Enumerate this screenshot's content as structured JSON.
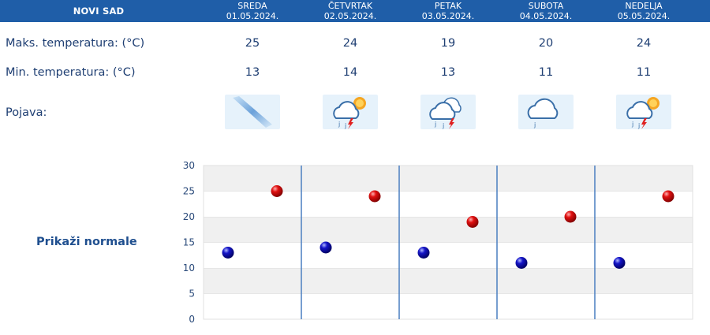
{
  "header": {
    "city": "NOVI SAD",
    "days": [
      {
        "name": "SREDA",
        "date": "01.05.2024."
      },
      {
        "name": "ČETVRTAK",
        "date": "02.05.2024."
      },
      {
        "name": "PETAK",
        "date": "03.05.2024."
      },
      {
        "name": "SUBOTA",
        "date": "04.05.2024."
      },
      {
        "name": "NEDELJA",
        "date": "05.05.2024."
      }
    ]
  },
  "rows": {
    "max_label": "Maks. temperatura: (°C)",
    "min_label": "Min. temperatura: (°C)",
    "phenomenon_label": "Pojava:"
  },
  "max_temps": [
    "25",
    "24",
    "19",
    "20",
    "24"
  ],
  "min_temps": [
    "13",
    "14",
    "13",
    "11",
    "11"
  ],
  "phenomenon_icons": [
    "sun-glare-icon",
    "partly-cloudy-thunderstorm-icon",
    "cloudy-thunderstorm-icon",
    "cloud-drizzle-icon",
    "partly-cloudy-thunderstorm-icon"
  ],
  "normals_link": "Prikaži normale",
  "colors": {
    "header": "#1f5ea8",
    "max_marker": "#cc0000",
    "min_marker": "#1010b0",
    "divider": "#4a7fc0"
  },
  "chart_data": {
    "type": "scatter",
    "categories": [
      "SREDA",
      "ČETVRTAK",
      "PETAK",
      "SUBOTA",
      "NEDELJA"
    ],
    "series": [
      {
        "values": [
          25,
          24,
          19,
          20,
          24
        ]
      },
      {
        "values": [
          13,
          14,
          13,
          11,
          11
        ]
      }
    ],
    "ylim": [
      0,
      30
    ],
    "yticks": [
      "0",
      "5",
      "10",
      "15",
      "20",
      "25",
      "30"
    ],
    "grid": true
  }
}
